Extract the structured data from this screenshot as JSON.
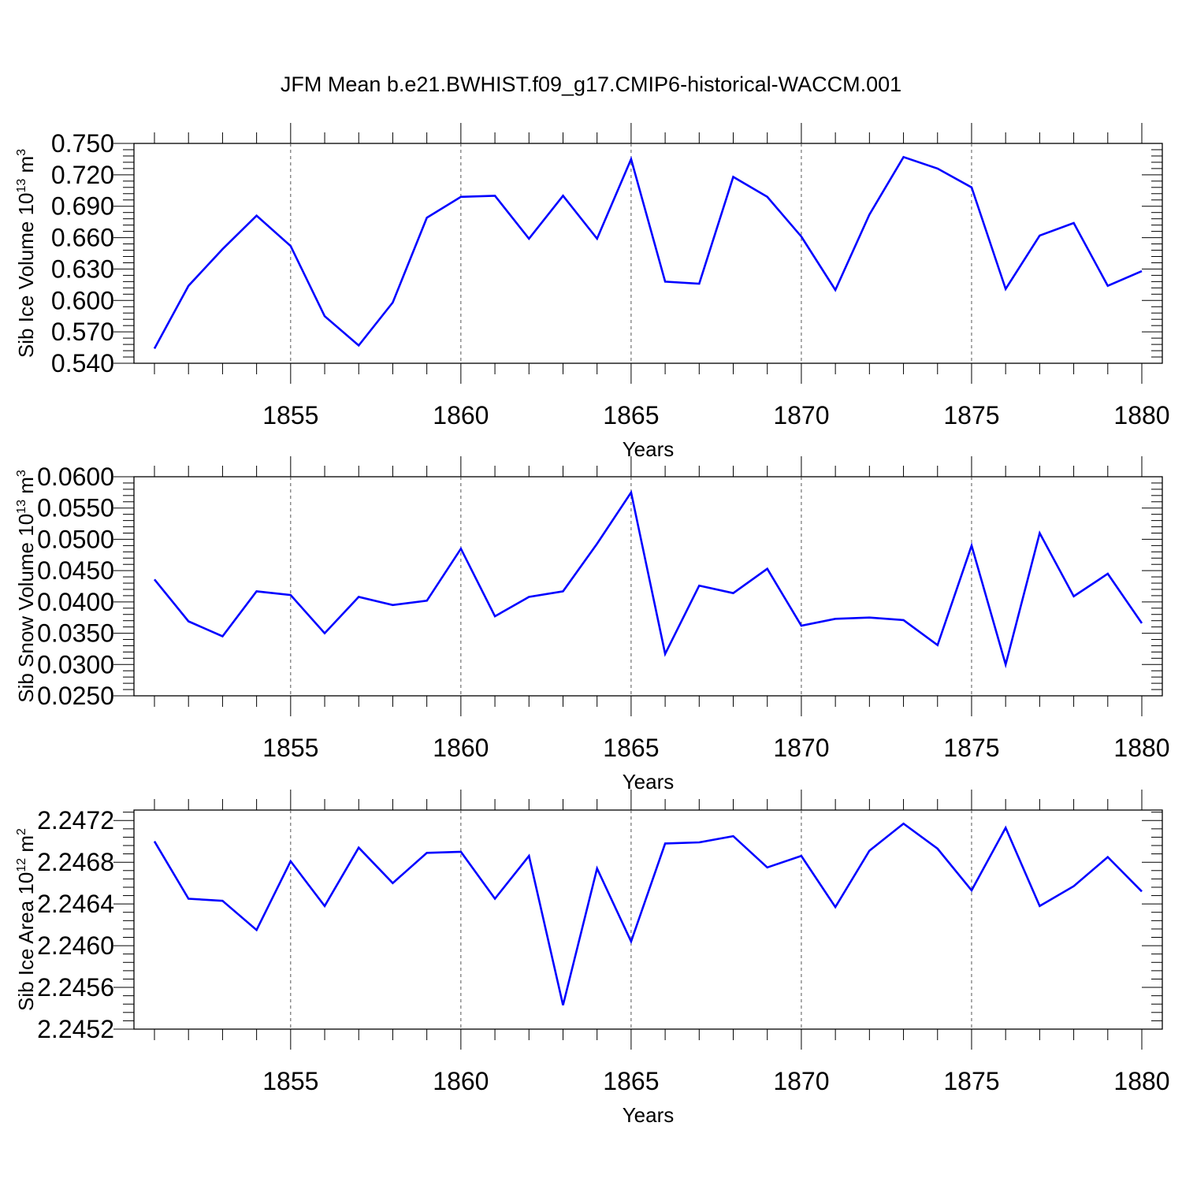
{
  "title": "JFM Mean b.e21.BWHIST.f09_g17.CMIP6-historical-WACCM.001",
  "colors": {
    "line": "#0000ff",
    "axis": "#000000",
    "grid": "#555555"
  },
  "chart_data": [
    {
      "type": "line",
      "ylabel": "Sib Ice Volume 10",
      "ylabel_exp": "13",
      "ylabel_unit": " m",
      "ylabel_unit_exp": "3",
      "xlabel": "Years",
      "xlim": [
        1851,
        1880
      ],
      "ylim": [
        0.54,
        0.75
      ],
      "yticks": [
        "0.540",
        "0.570",
        "0.600",
        "0.630",
        "0.660",
        "0.690",
        "0.720",
        "0.750"
      ],
      "xticks": [
        "1855",
        "1860",
        "1865",
        "1870",
        "1875",
        "1880"
      ],
      "grid_x": true,
      "x": [
        1851,
        1852,
        1853,
        1854,
        1855,
        1856,
        1857,
        1858,
        1859,
        1860,
        1861,
        1862,
        1863,
        1864,
        1865,
        1866,
        1867,
        1868,
        1869,
        1870,
        1871,
        1872,
        1873,
        1874,
        1875,
        1876,
        1877,
        1878,
        1879,
        1880
      ],
      "series": [
        {
          "values": [
            0.554,
            0.614,
            0.649,
            0.681,
            0.652,
            0.585,
            0.557,
            0.598,
            0.679,
            0.699,
            0.7,
            0.659,
            0.7,
            0.659,
            0.735,
            0.618,
            0.616,
            0.718,
            0.699,
            0.661,
            0.61,
            0.682,
            0.737,
            0.726,
            0.708,
            0.611,
            0.662,
            0.674,
            0.614,
            0.628
          ]
        }
      ]
    },
    {
      "type": "line",
      "ylabel": "Sib Snow Volume 10",
      "ylabel_exp": "13",
      "ylabel_unit": " m",
      "ylabel_unit_exp": "3",
      "xlabel": "Years",
      "xlim": [
        1851,
        1880
      ],
      "ylim": [
        0.025,
        0.06
      ],
      "yticks": [
        "0.0250",
        "0.0300",
        "0.0350",
        "0.0400",
        "0.0450",
        "0.0500",
        "0.0550",
        "0.0600"
      ],
      "xticks": [
        "1855",
        "1860",
        "1865",
        "1870",
        "1875",
        "1880"
      ],
      "grid_x": true,
      "x": [
        1851,
        1852,
        1853,
        1854,
        1855,
        1856,
        1857,
        1858,
        1859,
        1860,
        1861,
        1862,
        1863,
        1864,
        1865,
        1866,
        1867,
        1868,
        1869,
        1870,
        1871,
        1872,
        1873,
        1874,
        1875,
        1876,
        1877,
        1878,
        1879,
        1880
      ],
      "series": [
        {
          "values": [
            0.0436,
            0.0369,
            0.0345,
            0.0417,
            0.0411,
            0.035,
            0.0408,
            0.0395,
            0.0402,
            0.0485,
            0.0377,
            0.0408,
            0.0417,
            0.0493,
            0.0575,
            0.0317,
            0.0426,
            0.0414,
            0.0453,
            0.0362,
            0.0373,
            0.0375,
            0.0371,
            0.0331,
            0.049,
            0.03,
            0.051,
            0.0409,
            0.0445,
            0.0366
          ]
        }
      ]
    },
    {
      "type": "line",
      "ylabel": "Sib Ice Area 10",
      "ylabel_exp": "12",
      "ylabel_unit": " m",
      "ylabel_unit_exp": "2",
      "xlabel": "Years",
      "xlim": [
        1851,
        1880
      ],
      "ylim": [
        2.2452,
        2.2473
      ],
      "yticks": [
        "2.2452",
        "2.2456",
        "2.2460",
        "2.2464",
        "2.2468",
        "2.2472"
      ],
      "xticks": [
        "1855",
        "1860",
        "1865",
        "1870",
        "1875",
        "1880"
      ],
      "grid_x": true,
      "x": [
        1851,
        1852,
        1853,
        1854,
        1855,
        1856,
        1857,
        1858,
        1859,
        1860,
        1861,
        1862,
        1863,
        1864,
        1865,
        1866,
        1867,
        1868,
        1869,
        1870,
        1871,
        1872,
        1873,
        1874,
        1875,
        1876,
        1877,
        1878,
        1879,
        1880
      ],
      "series": [
        {
          "values": [
            2.247,
            2.24645,
            2.24643,
            2.24615,
            2.24681,
            2.24638,
            2.24694,
            2.2466,
            2.24689,
            2.2469,
            2.24645,
            2.24686,
            2.24543,
            2.24674,
            2.24604,
            2.24698,
            2.24699,
            2.24705,
            2.24675,
            2.24686,
            2.24637,
            2.24691,
            2.24717,
            2.24693,
            2.24653,
            2.24713,
            2.24638,
            2.24657,
            2.24685,
            2.24652
          ]
        }
      ]
    }
  ]
}
